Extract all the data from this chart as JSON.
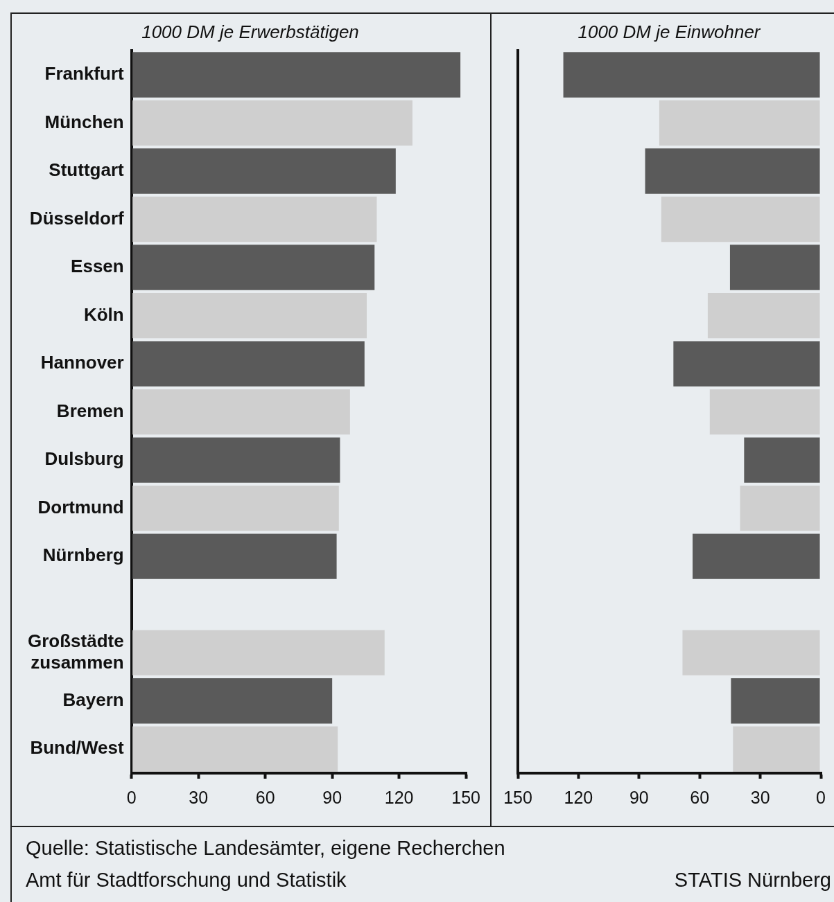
{
  "chart_data": [
    {
      "type": "bar",
      "orientation": "horizontal",
      "xlabel": "1000 DM je Erwerbstätigen",
      "categories": [
        "Frankfurt",
        "München",
        "Stuttgart",
        "Düsseldorf",
        "Essen",
        "Köln",
        "Hannover",
        "Bremen",
        "Dulsburg",
        "Dortmund",
        "Nürnberg",
        null,
        "Großstädte zusammen",
        "Bayern",
        "Bund/West"
      ],
      "values": [
        147.5,
        126,
        118.5,
        110,
        109,
        105.5,
        104.5,
        98,
        93.5,
        93,
        92,
        null,
        113.5,
        90,
        92.5
      ],
      "colors": [
        "#5a5a5a",
        "#cfcfcf",
        "#5a5a5a",
        "#cfcfcf",
        "#5a5a5a",
        "#cfcfcf",
        "#5a5a5a",
        "#cfcfcf",
        "#5a5a5a",
        "#cfcfcf",
        "#5a5a5a",
        "#cfcfcf",
        "#cfcfcf",
        "#5a5a5a",
        "#cfcfcf"
      ],
      "xlim": [
        0,
        150
      ],
      "xticks": [
        0,
        30,
        60,
        90,
        120,
        150
      ],
      "grid": false,
      "legend": false,
      "annotations": [
        "Quelle: Statistische Landesämter, eigene Recherchen",
        "Amt für Stadtforschung und Statistik",
        "STATIS Nürnberg"
      ]
    },
    {
      "type": "bar",
      "orientation": "horizontal",
      "xlabel": "1000 DM je Einwohner",
      "categories": [
        null,
        null,
        null,
        null,
        null,
        null,
        null,
        null,
        null,
        null,
        null,
        null,
        null,
        null,
        null
      ],
      "values": [
        127.5,
        80,
        87,
        79,
        45,
        56,
        73,
        55,
        38,
        40,
        63.5,
        null,
        68.5,
        44.5,
        43.5
      ],
      "colors": [
        "#5a5a5a",
        "#cfcfcf",
        "#5a5a5a",
        "#cfcfcf",
        "#5a5a5a",
        "#cfcfcf",
        "#5a5a5a",
        "#cfcfcf",
        "#5a5a5a",
        "#cfcfcf",
        "#5a5a5a",
        "#cfcfcf",
        "#cfcfcf",
        "#5a5a5a",
        "#cfcfcf"
      ],
      "xlim": [
        150,
        0
      ],
      "xticks": [
        150,
        120,
        90,
        60,
        30,
        0
      ],
      "grid": false,
      "legend": false,
      "tick_labels": "x"
    }
  ]
}
